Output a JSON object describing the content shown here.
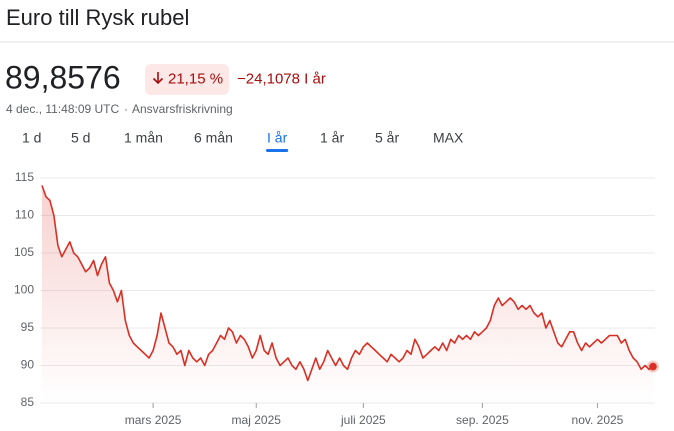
{
  "header": {
    "title": "Euro till Rysk rubel",
    "price": "89,8576",
    "change_percent": "21,15 %",
    "change": "−24,1078 I år",
    "timestamp": "4 dec., 11:48:09 UTC",
    "separator": "·",
    "disclaimer": "Ansvarsfriskrivning"
  },
  "tabs": {
    "items": [
      "1 d",
      "5 d",
      "1 mån",
      "6 mån",
      "I år",
      "1 år",
      "5 år",
      "MAX"
    ],
    "active": 4
  },
  "chart_data": {
    "type": "line",
    "color": "#d93025",
    "categories": [
      null,
      null,
      null,
      null,
      null,
      null,
      null,
      null,
      null,
      null,
      null,
      null,
      null,
      null,
      null,
      null,
      null,
      null,
      null,
      null,
      null,
      null,
      null,
      null,
      null,
      null,
      null,
      null,
      "mars 2025",
      null,
      null,
      null,
      null,
      null,
      null,
      null,
      null,
      null,
      null,
      null,
      null,
      null,
      null,
      null,
      null,
      null,
      null,
      null,
      null,
      null,
      null,
      null,
      null,
      null,
      "maj 2025",
      null,
      null,
      null,
      null,
      null,
      null,
      null,
      null,
      null,
      null,
      null,
      null,
      null,
      null,
      null,
      null,
      null,
      null,
      null,
      null,
      null,
      null,
      null,
      null,
      null,
      null,
      "juli 2025",
      null,
      null,
      null,
      null,
      null,
      null,
      null,
      null,
      null,
      null,
      null,
      null,
      null,
      null,
      null,
      null,
      null,
      null,
      null,
      null,
      null,
      null,
      null,
      null,
      null,
      null,
      null,
      null,
      null,
      "sep. 2025",
      null,
      null,
      null,
      null,
      null,
      null,
      null,
      null,
      null,
      null,
      null,
      null,
      null,
      null,
      null,
      null,
      null,
      null,
      null,
      null,
      null,
      null,
      null,
      null,
      null,
      null,
      null,
      null,
      "nov. 2025",
      null,
      null,
      null,
      null,
      null,
      null,
      null,
      null,
      null,
      null,
      null,
      null,
      null,
      null
    ],
    "values": [
      114,
      112.5,
      112,
      110,
      106,
      104.5,
      105.5,
      106.5,
      105,
      104.5,
      103.5,
      102.5,
      103,
      104,
      102,
      103.5,
      104.5,
      101,
      100,
      98.5,
      100,
      96,
      94,
      93,
      92.5,
      92,
      91.5,
      91,
      92,
      94,
      97,
      95,
      93,
      92.5,
      91.5,
      92,
      90,
      92,
      91,
      90.5,
      91,
      90,
      91.5,
      92,
      93,
      94,
      93.5,
      95,
      94.5,
      93,
      94,
      93.5,
      92.5,
      91,
      92,
      94,
      92,
      91.5,
      93,
      91,
      90,
      90.5,
      91,
      90,
      89.5,
      90.5,
      89.5,
      88,
      89.5,
      91,
      89.5,
      90.5,
      92,
      91,
      90,
      91,
      90,
      89.5,
      91,
      92,
      91.5,
      92.5,
      93,
      92.5,
      92,
      91.5,
      91,
      90.5,
      91.5,
      91,
      90.5,
      91,
      92,
      91.5,
      93.5,
      92.5,
      91,
      91.5,
      92,
      92.5,
      92,
      93,
      92,
      93.5,
      93,
      94,
      93.5,
      94,
      93.5,
      94.5,
      94,
      94.5,
      95,
      96,
      98,
      99,
      98,
      98.5,
      99,
      98.5,
      97.5,
      98,
      97.5,
      98,
      97,
      96.5,
      97,
      95,
      96,
      94.5,
      93,
      92.5,
      93.5,
      94.5,
      94.5,
      93,
      92,
      93,
      92.5,
      93,
      93.5,
      93,
      93.5,
      94,
      94,
      94,
      93,
      93.5,
      92,
      91,
      90.5,
      89.5,
      90,
      89.5,
      89.86
    ],
    "ylim": [
      85,
      115
    ],
    "yticks": [
      85,
      90,
      95,
      100,
      105,
      110,
      115
    ],
    "grid": true
  }
}
